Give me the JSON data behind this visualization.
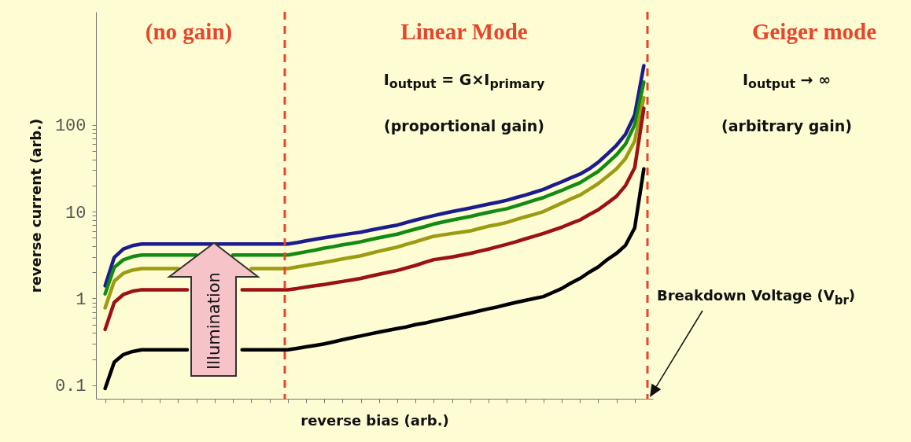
{
  "chart_data": {
    "type": "line",
    "xlabel": "reverse bias (arb.)",
    "ylabel": "reverse current (arb.)",
    "log": "y",
    "tick_labels": "y",
    "grid": false,
    "line_style": "solid",
    "ylim": [
      0.07,
      2000
    ],
    "yticks": [
      0.1,
      {
        "value": 0.2,
        "label": null
      },
      {
        "value": 0.3,
        "label": null
      },
      {
        "value": 0.4,
        "label": null
      },
      {
        "value": 0.5,
        "label": null
      },
      {
        "value": 0.6,
        "label": null
      },
      {
        "value": 0.7,
        "label": null
      },
      {
        "value": 0.8,
        "label": null
      },
      {
        "value": 0.9,
        "label": null
      },
      1,
      {
        "value": 2,
        "label": null
      },
      {
        "value": 3,
        "label": null
      },
      {
        "value": 4,
        "label": null
      },
      {
        "value": 5,
        "label": null
      },
      {
        "value": 6,
        "label": null
      },
      {
        "value": 7,
        "label": null
      },
      {
        "value": 8,
        "label": null
      },
      {
        "value": 9,
        "label": null
      },
      10,
      {
        "value": 20,
        "label": null
      },
      {
        "value": 30,
        "label": null
      },
      {
        "value": 40,
        "label": null
      },
      {
        "value": 50,
        "label": null
      },
      {
        "value": 60,
        "label": null
      },
      {
        "value": 70,
        "label": null
      },
      {
        "value": 80,
        "label": null
      },
      {
        "value": 90,
        "label": null
      },
      100
    ],
    "categories": [
      null,
      null,
      null,
      null,
      null,
      null,
      null,
      null,
      null,
      null,
      null,
      null,
      null,
      null,
      null,
      null,
      null,
      null,
      null,
      null,
      null,
      null,
      null,
      null,
      null,
      null,
      null,
      null,
      null,
      null,
      null,
      null,
      null,
      null,
      null,
      null,
      null,
      null,
      null,
      null,
      null,
      null,
      null,
      null,
      null,
      null,
      null,
      null,
      null,
      null,
      null,
      null,
      null,
      null,
      null,
      null,
      null,
      null,
      null,
      null
    ],
    "series": [
      {
        "color": "#1c1c8e",
        "values": [
          1.4,
          2.97,
          3.71,
          4.06,
          4.24,
          4.24,
          4.24,
          4.24,
          4.24,
          4.24,
          4.24,
          4.24,
          4.24,
          4.24,
          4.24,
          4.24,
          4.24,
          4.24,
          4.24,
          4.24,
          4.24,
          4.4,
          4.6,
          4.8,
          5.0,
          5.2,
          5.4,
          5.6,
          5.8,
          6.1,
          6.4,
          6.7,
          7.0,
          7.5,
          8.0,
          8.5,
          9.0,
          9.5,
          10,
          10.5,
          11,
          11.6,
          12.2,
          12.8,
          13.5,
          14.5,
          15.5,
          16.7,
          18,
          20,
          22,
          24.5,
          27,
          31,
          37,
          46,
          58,
          78,
          130,
          480
        ]
      },
      {
        "color": "#138a13",
        "values": [
          1.13,
          2.28,
          2.79,
          3.03,
          3.16,
          3.16,
          3.16,
          3.16,
          3.16,
          3.16,
          3.16,
          null,
          null,
          null,
          3.16,
          3.16,
          3.16,
          3.16,
          3.16,
          3.16,
          3.16,
          3.3,
          3.45,
          3.6,
          3.8,
          3.95,
          4.15,
          4.3,
          4.5,
          4.75,
          5.0,
          5.25,
          5.5,
          5.9,
          6.3,
          6.7,
          7.2,
          7.6,
          8.0,
          8.4,
          8.8,
          9.3,
          9.8,
          10.3,
          10.8,
          11.6,
          12.5,
          13.5,
          14.5,
          16,
          17.5,
          19.5,
          21.5,
          25,
          29,
          36,
          45,
          60,
          100,
          310
        ]
      },
      {
        "color": "#9c9c12",
        "values": [
          0.78,
          1.58,
          1.95,
          2.12,
          2.21,
          2.21,
          2.21,
          2.21,
          2.21,
          null,
          null,
          null,
          null,
          null,
          null,
          null,
          2.21,
          2.21,
          2.21,
          2.21,
          2.21,
          2.3,
          2.4,
          2.5,
          2.6,
          2.72,
          2.85,
          2.97,
          3.1,
          3.3,
          3.5,
          3.7,
          3.9,
          4.2,
          4.5,
          4.85,
          5.2,
          5.4,
          5.6,
          5.8,
          6.0,
          6.4,
          6.8,
          7.1,
          7.5,
          8.1,
          8.7,
          9.3,
          10,
          11.2,
          12.5,
          14,
          15.5,
          18,
          21,
          25.5,
          31,
          41,
          65,
          205
        ]
      },
      {
        "color": "#9a1212",
        "values": [
          0.44,
          0.9,
          1.11,
          1.21,
          1.26,
          1.26,
          1.26,
          1.26,
          1.26,
          1.26,
          null,
          null,
          null,
          null,
          null,
          1.26,
          1.26,
          1.26,
          1.26,
          1.26,
          1.26,
          1.3,
          1.35,
          1.4,
          1.45,
          1.51,
          1.57,
          1.63,
          1.7,
          1.8,
          1.9,
          2.0,
          2.1,
          2.25,
          2.4,
          2.6,
          2.8,
          2.9,
          3.0,
          3.15,
          3.3,
          3.5,
          3.7,
          3.95,
          4.2,
          4.5,
          4.85,
          5.2,
          5.6,
          6.1,
          6.6,
          7.3,
          8.0,
          9.2,
          10.5,
          12.5,
          15,
          20,
          32,
          155
        ]
      },
      {
        "color": "#000000",
        "values": [
          0.092,
          0.185,
          0.226,
          0.245,
          0.256,
          0.256,
          0.256,
          0.256,
          0.256,
          0.256,
          null,
          null,
          null,
          null,
          null,
          0.256,
          0.256,
          0.256,
          0.256,
          0.256,
          0.256,
          0.266,
          0.277,
          0.288,
          0.3,
          0.316,
          0.334,
          0.352,
          0.37,
          0.39,
          0.41,
          0.43,
          0.45,
          0.47,
          0.5,
          0.52,
          0.55,
          0.58,
          0.61,
          0.645,
          0.68,
          0.72,
          0.76,
          0.8,
          0.85,
          0.9,
          0.95,
          1.0,
          1.05,
          1.17,
          1.3,
          1.5,
          1.7,
          2.0,
          2.3,
          2.8,
          3.3,
          4.1,
          6.5,
          31
        ]
      }
    ],
    "ref_lines": [
      {
        "axis": "x",
        "color": "#e8452c",
        "line_style": "dashed"
      },
      {
        "axis": "x",
        "color": "#e8452c",
        "line_style": "dashed"
      }
    ],
    "annotations": [
      "(no gain)",
      "Linear Mode",
      "I$_{output}$ = G×I$_{primary}$",
      "(proportional gain)",
      "Geiger mode",
      "I$_{output}$ → ∞",
      "(arbitrary gain)",
      "Illumination",
      "Breakdown Voltage (V$_{br}$)"
    ]
  }
}
